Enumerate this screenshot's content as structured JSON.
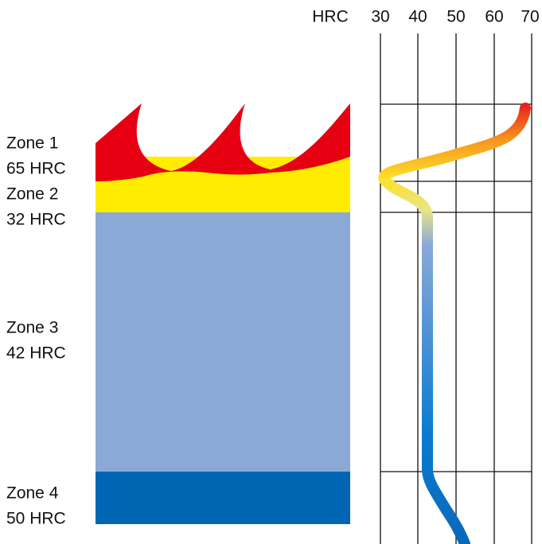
{
  "axis": {
    "label": "HRC",
    "ticks": [
      "30",
      "40",
      "50",
      "60",
      "70"
    ]
  },
  "zones": [
    {
      "name": "Zone 1",
      "hardness": "65 HRC"
    },
    {
      "name": "Zone 2",
      "hardness": "32 HRC"
    },
    {
      "name": "Zone 3",
      "hardness": "42 HRC"
    },
    {
      "name": "Zone 4",
      "hardness": "50 HRC"
    }
  ]
}
